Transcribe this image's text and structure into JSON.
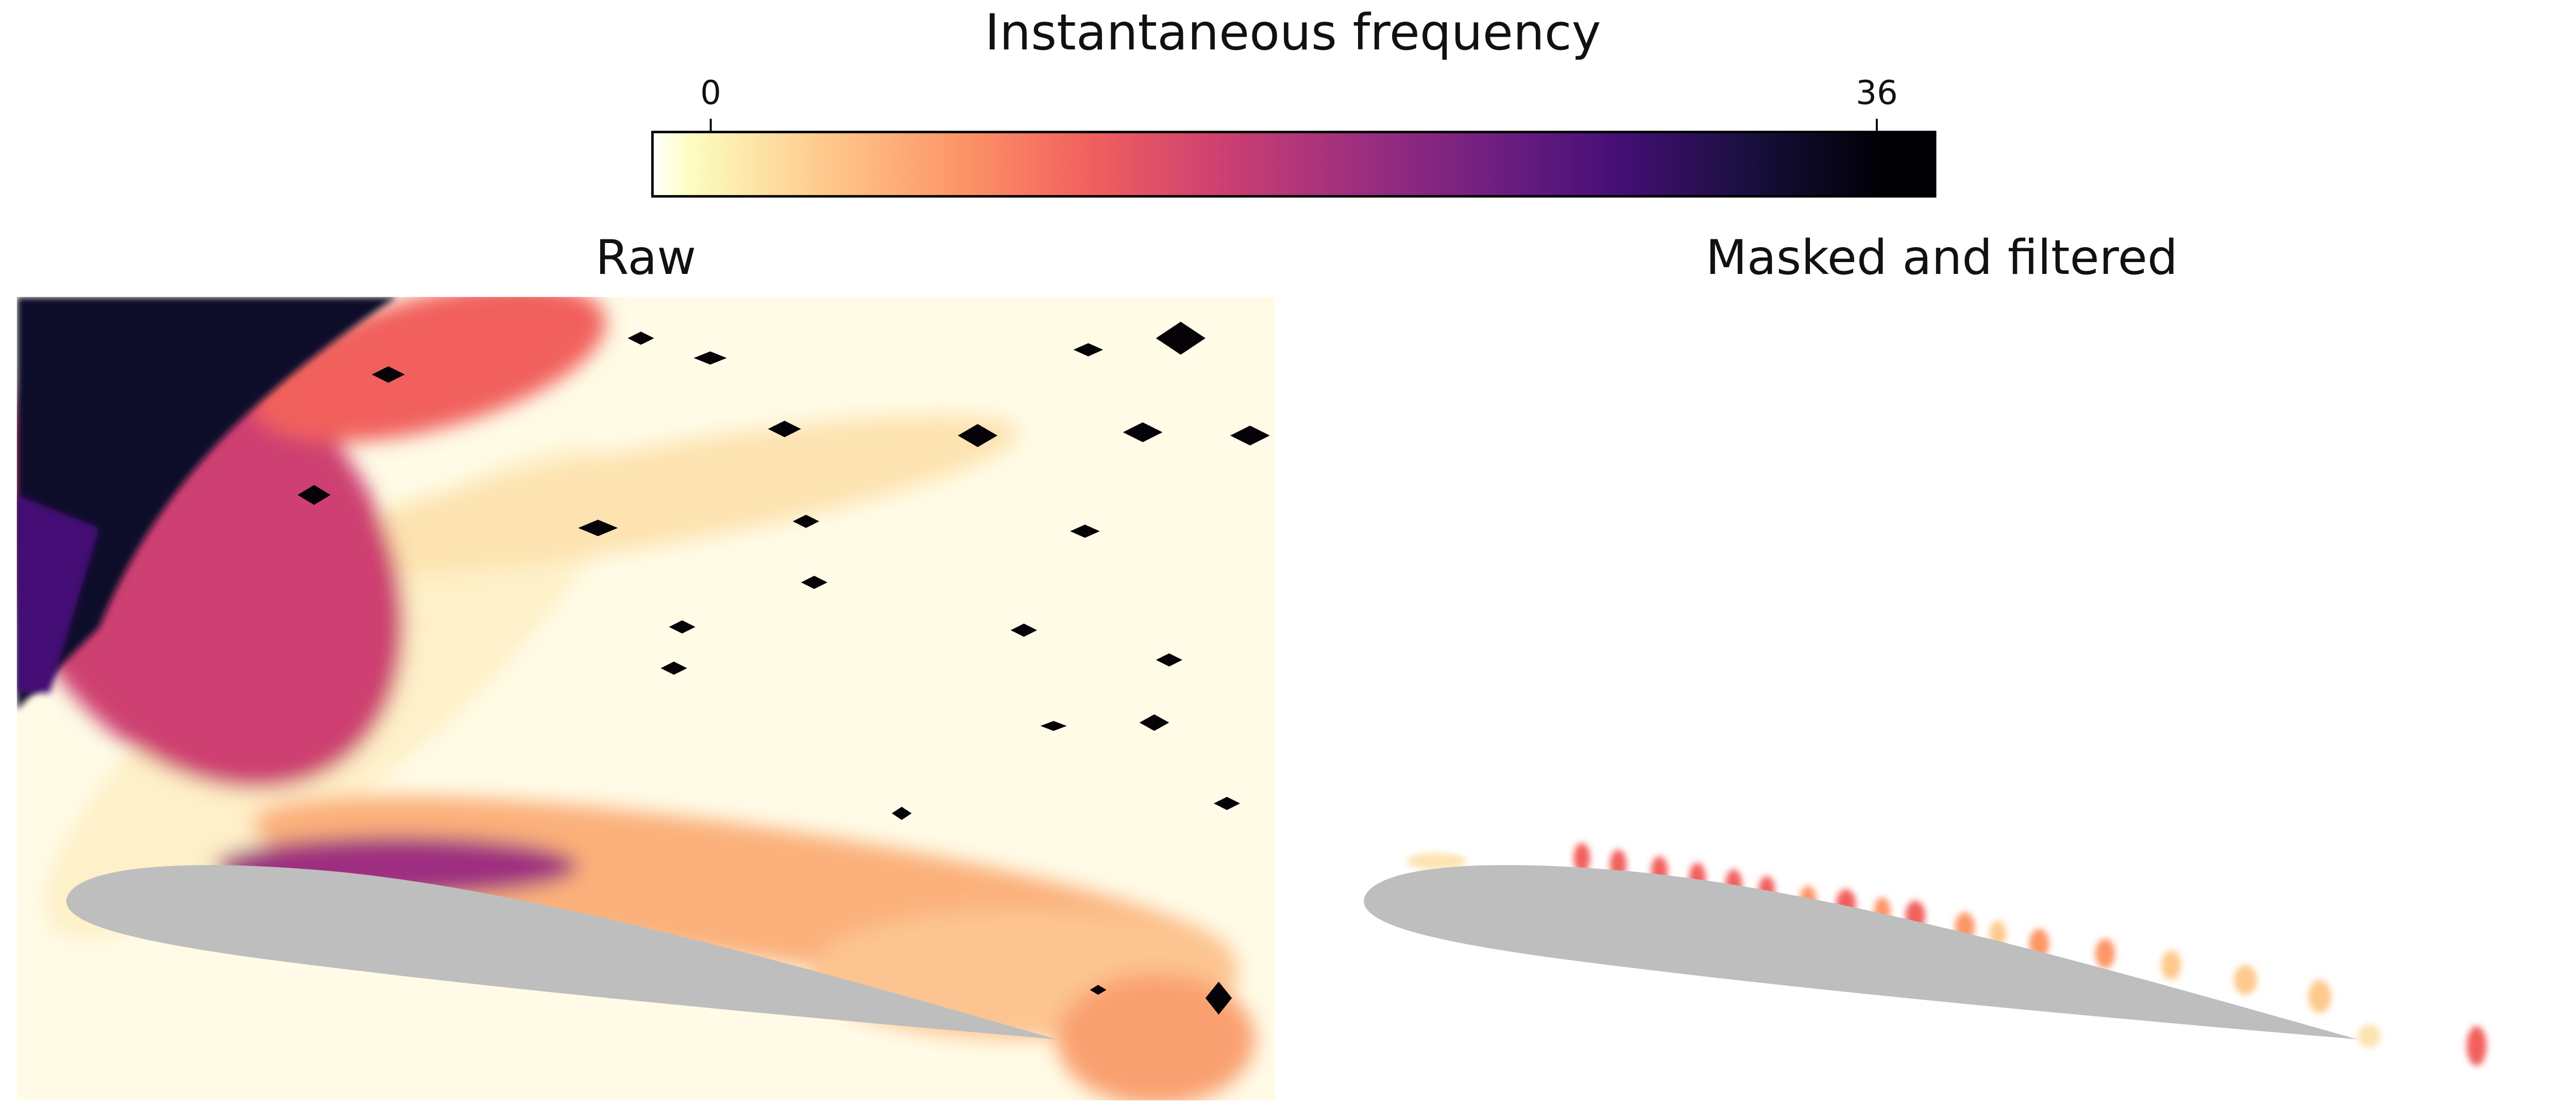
{
  "chart_data": {
    "type": "image",
    "colorbar": {
      "label": "Instantaneous frequency",
      "clim": [
        -1.8,
        37.8
      ],
      "ticks": [
        0,
        36
      ],
      "colors": [
        "#ffffff",
        "#fcfdbf",
        "#fec98d",
        "#fd9668",
        "#f1605d",
        "#cd4071",
        "#9e2f7f",
        "#721f81",
        "#440f76",
        "#180f3d",
        "#000004"
      ]
    },
    "panels": [
      {
        "title": "Raw"
      },
      {
        "title": "Masked and filtered"
      }
    ]
  }
}
